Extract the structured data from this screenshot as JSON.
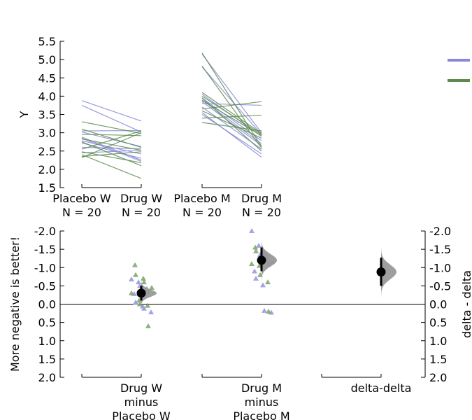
{
  "chart_data": [
    {
      "type": "line",
      "panel": "paired-slopegraph",
      "title": "",
      "ylabel": "Y",
      "ylim": [
        1.5,
        5.5
      ],
      "yticks": [
        "1.5",
        "2.0",
        "2.5",
        "3.0",
        "3.5",
        "4.0",
        "4.5",
        "5.0",
        "5.5"
      ],
      "groups": [
        {
          "pair": [
            {
              "label": "Placebo W",
              "n_label": "N = 20"
            },
            {
              "label": "Drug W",
              "n_label": "N = 20"
            }
          ],
          "lines": [
            {
              "series": 0,
              "y": [
                3.88,
                3.32
              ]
            },
            {
              "series": 0,
              "y": [
                3.75,
                3.02
              ]
            },
            {
              "series": 0,
              "y": [
                3.05,
                3.06
              ]
            },
            {
              "series": 0,
              "y": [
                3.02,
                2.62
              ]
            },
            {
              "series": 0,
              "y": [
                2.88,
                2.25
              ]
            },
            {
              "series": 0,
              "y": [
                2.85,
                2.22
              ]
            },
            {
              "series": 0,
              "y": [
                2.78,
                2.42
              ]
            },
            {
              "series": 0,
              "y": [
                2.72,
                2.3
              ]
            },
            {
              "series": 0,
              "y": [
                2.6,
                2.56
              ]
            },
            {
              "series": 0,
              "y": [
                2.45,
                2.52
              ]
            },
            {
              "series": 1,
              "y": [
                3.3,
                2.98
              ]
            },
            {
              "series": 1,
              "y": [
                3.1,
                2.6
              ]
            },
            {
              "series": 1,
              "y": [
                2.96,
                2.92
              ]
            },
            {
              "series": 1,
              "y": [
                2.83,
                2.52
              ]
            },
            {
              "series": 1,
              "y": [
                2.75,
                2.1
              ]
            },
            {
              "series": 1,
              "y": [
                2.55,
                3.05
              ]
            },
            {
              "series": 1,
              "y": [
                2.48,
                2.18
              ]
            },
            {
              "series": 1,
              "y": [
                2.4,
                1.75
              ]
            },
            {
              "series": 1,
              "y": [
                2.35,
                2.48
              ]
            },
            {
              "series": 1,
              "y": [
                2.32,
                3.0
              ]
            }
          ]
        },
        {
          "pair": [
            {
              "label": "Placebo M",
              "n_label": "N = 20"
            },
            {
              "label": "Drug M",
              "n_label": "N = 20"
            }
          ],
          "lines": [
            {
              "series": 0,
              "y": [
                5.15,
                3.0
              ]
            },
            {
              "series": 0,
              "y": [
                4.8,
                2.95
              ]
            },
            {
              "series": 0,
              "y": [
                4.05,
                2.9
              ]
            },
            {
              "series": 0,
              "y": [
                3.95,
                2.78
              ]
            },
            {
              "series": 0,
              "y": [
                3.9,
                2.7
              ]
            },
            {
              "series": 0,
              "y": [
                3.85,
                2.65
              ]
            },
            {
              "series": 0,
              "y": [
                3.8,
                3.75
              ]
            },
            {
              "series": 0,
              "y": [
                3.7,
                2.55
              ]
            },
            {
              "series": 0,
              "y": [
                3.55,
                2.33
              ]
            },
            {
              "series": 0,
              "y": [
                3.5,
                2.42
              ]
            },
            {
              "series": 1,
              "y": [
                5.18,
                2.62
              ]
            },
            {
              "series": 1,
              "y": [
                4.82,
                2.58
              ]
            },
            {
              "series": 1,
              "y": [
                4.1,
                2.98
              ]
            },
            {
              "series": 1,
              "y": [
                4.0,
                2.95
              ]
            },
            {
              "series": 1,
              "y": [
                3.95,
                2.5
              ]
            },
            {
              "series": 1,
              "y": [
                3.88,
                2.92
              ]
            },
            {
              "series": 1,
              "y": [
                3.65,
                3.85
              ]
            },
            {
              "series": 1,
              "y": [
                3.6,
                2.85
              ]
            },
            {
              "series": 1,
              "y": [
                3.4,
                3.48
              ]
            },
            {
              "series": 1,
              "y": [
                3.28,
                3.05
              ]
            }
          ]
        }
      ],
      "series": [
        {
          "color": "#8888d8"
        },
        {
          "color": "#5c8c4c"
        }
      ],
      "legend": {
        "placement": "top-right"
      }
    },
    {
      "type": "scatter",
      "panel": "delta-estimation",
      "title": "",
      "ylabel": "More negative is better!",
      "y2label": "delta - delta",
      "ylim": [
        2.0,
        -2.0
      ],
      "y_inverted": true,
      "yticks": [
        "-2.0",
        "-1.5",
        "-1.0",
        "-0.5",
        "0.0",
        "0.5",
        "1.0",
        "1.5",
        "2.0"
      ],
      "zero_line": 0,
      "categories": [
        {
          "label_lines": [
            "Drug W",
            "minus",
            "Placebo W"
          ]
        },
        {
          "label_lines": [
            "Drug M",
            "minus",
            "Placebo M"
          ]
        },
        {
          "label_lines": [
            "delta-delta"
          ]
        }
      ],
      "delta_points": [
        {
          "category": 0,
          "series0": [
            -0.68,
            -0.6,
            -0.5,
            -0.42,
            -0.35,
            -0.28,
            -0.05,
            0.06,
            0.12,
            0.22
          ],
          "series1": [
            -1.07,
            -0.8,
            -0.7,
            -0.6,
            -0.45,
            -0.3,
            -0.1,
            0.0,
            0.04,
            0.6
          ]
        },
        {
          "category": 1,
          "series0": [
            -2.0,
            -1.6,
            -1.35,
            -1.3,
            -1.1,
            -0.9,
            -0.7,
            -0.52,
            0.18,
            0.23
          ],
          "series1": [
            -1.55,
            -1.45,
            -1.4,
            -1.25,
            -1.15,
            -1.1,
            -1.05,
            -0.8,
            -0.6,
            0.2
          ]
        }
      ],
      "estimates": [
        {
          "category": 0,
          "mean": -0.3,
          "ci": [
            -0.1,
            -0.5
          ]
        },
        {
          "category": 1,
          "mean": -1.2,
          "ci": [
            -0.9,
            -1.55
          ]
        },
        {
          "category": 2,
          "mean": -0.88,
          "ci": [
            -0.5,
            -1.27
          ]
        }
      ],
      "series": [
        {
          "color": "#9a9ae0"
        },
        {
          "color": "#80a870"
        }
      ],
      "distribution_color": "#999999"
    }
  ]
}
